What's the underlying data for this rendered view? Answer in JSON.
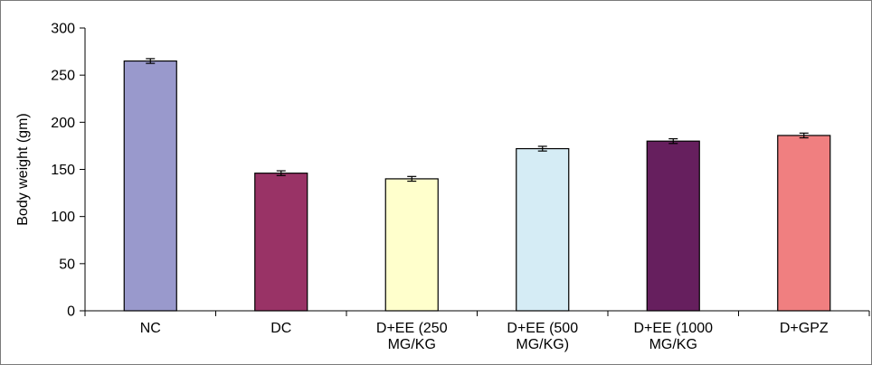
{
  "chart_data": {
    "type": "bar",
    "title": "",
    "xlabel": "",
    "ylabel": "Body weight (gm)",
    "ylim": [
      0,
      300
    ],
    "yticks": [
      0,
      50,
      100,
      150,
      200,
      250,
      300
    ],
    "grid": false,
    "legend": "none",
    "categories": [
      [
        "NC"
      ],
      [
        "DC"
      ],
      [
        "D+EE (250",
        "MG/KG"
      ],
      [
        "D+EE (500",
        "MG/KG)"
      ],
      [
        "D+EE (1000",
        "MG/KG"
      ],
      [
        "D+GPZ"
      ]
    ],
    "values": [
      265,
      146,
      140,
      172,
      180,
      186
    ],
    "errors": [
      2.5,
      2.5,
      2.5,
      2.5,
      2.5,
      2.5
    ],
    "colors": [
      "#9999cc",
      "#993366",
      "#ffffcc",
      "#d5ecf5",
      "#661f5e",
      "#f07f80"
    ]
  }
}
